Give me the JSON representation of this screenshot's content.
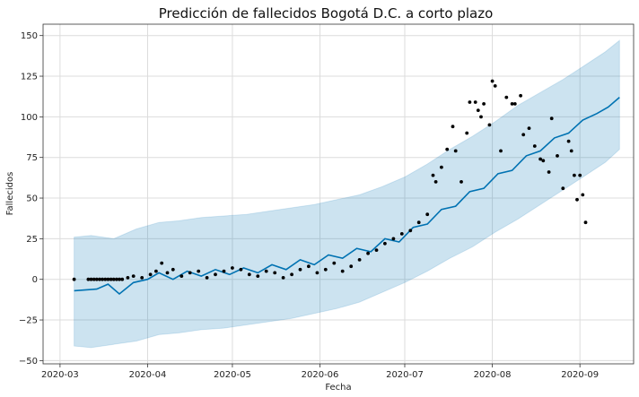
{
  "chart_data": {
    "type": "line",
    "title": "Predicción de fallecidos Bogotá D.C. a corto plazo",
    "xlabel": "Fecha",
    "ylabel": "Fallecidos",
    "x_ticks": [
      "2020-03",
      "2020-04",
      "2020-05",
      "2020-06",
      "2020-07",
      "2020-08",
      "2020-09"
    ],
    "y_ticks": [
      -50,
      -25,
      0,
      25,
      50,
      75,
      100,
      125,
      150
    ],
    "xlim": [
      "2020-02-24",
      "2020-09-20"
    ],
    "ylim": [
      -52,
      157
    ],
    "grid": true,
    "colors": {
      "forecast": "#0072B2",
      "uncertainty": "#0072B2",
      "observed": "#000000"
    },
    "series": [
      {
        "kind": "forecast",
        "points": [
          [
            "2020-03-06",
            -7
          ],
          [
            "2020-03-14",
            -6
          ],
          [
            "2020-03-18",
            -3
          ],
          [
            "2020-03-22",
            -9
          ],
          [
            "2020-03-27",
            -2
          ],
          [
            "2020-04-01",
            0
          ],
          [
            "2020-04-05",
            4
          ],
          [
            "2020-04-10",
            0
          ],
          [
            "2020-04-15",
            5
          ],
          [
            "2020-04-20",
            2
          ],
          [
            "2020-04-25",
            6
          ],
          [
            "2020-04-30",
            3
          ],
          [
            "2020-05-05",
            7
          ],
          [
            "2020-05-10",
            4
          ],
          [
            "2020-05-15",
            9
          ],
          [
            "2020-05-20",
            6
          ],
          [
            "2020-05-25",
            12
          ],
          [
            "2020-05-30",
            9
          ],
          [
            "2020-06-04",
            15
          ],
          [
            "2020-06-09",
            13
          ],
          [
            "2020-06-14",
            19
          ],
          [
            "2020-06-19",
            17
          ],
          [
            "2020-06-24",
            25
          ],
          [
            "2020-06-29",
            23
          ],
          [
            "2020-07-04",
            32
          ],
          [
            "2020-07-09",
            34
          ],
          [
            "2020-07-14",
            43
          ],
          [
            "2020-07-19",
            45
          ],
          [
            "2020-07-24",
            54
          ],
          [
            "2020-07-29",
            56
          ],
          [
            "2020-08-03",
            65
          ],
          [
            "2020-08-08",
            67
          ],
          [
            "2020-08-13",
            76
          ],
          [
            "2020-08-18",
            79
          ],
          [
            "2020-08-23",
            87
          ],
          [
            "2020-08-28",
            90
          ],
          [
            "2020-09-02",
            98
          ],
          [
            "2020-09-07",
            102
          ],
          [
            "2020-09-11",
            106
          ],
          [
            "2020-09-15",
            112
          ]
        ]
      },
      {
        "kind": "uncertainty_upper",
        "points": [
          [
            "2020-03-06",
            26
          ],
          [
            "2020-03-12",
            27
          ],
          [
            "2020-03-20",
            25
          ],
          [
            "2020-03-28",
            31
          ],
          [
            "2020-04-05",
            35
          ],
          [
            "2020-04-12",
            36
          ],
          [
            "2020-04-20",
            38
          ],
          [
            "2020-04-28",
            39
          ],
          [
            "2020-05-06",
            40
          ],
          [
            "2020-05-14",
            42
          ],
          [
            "2020-05-22",
            44
          ],
          [
            "2020-05-30",
            46
          ],
          [
            "2020-06-07",
            49
          ],
          [
            "2020-06-15",
            52
          ],
          [
            "2020-06-23",
            57
          ],
          [
            "2020-07-01",
            63
          ],
          [
            "2020-07-09",
            71
          ],
          [
            "2020-07-17",
            80
          ],
          [
            "2020-07-25",
            88
          ],
          [
            "2020-08-02",
            97
          ],
          [
            "2020-08-10",
            107
          ],
          [
            "2020-08-18",
            115
          ],
          [
            "2020-08-26",
            123
          ],
          [
            "2020-09-03",
            132
          ],
          [
            "2020-09-10",
            140
          ],
          [
            "2020-09-15",
            147
          ]
        ]
      },
      {
        "kind": "uncertainty_lower",
        "points": [
          [
            "2020-03-06",
            -41
          ],
          [
            "2020-03-12",
            -42
          ],
          [
            "2020-03-20",
            -40
          ],
          [
            "2020-03-28",
            -38
          ],
          [
            "2020-04-05",
            -34
          ],
          [
            "2020-04-12",
            -33
          ],
          [
            "2020-04-20",
            -31
          ],
          [
            "2020-04-28",
            -30
          ],
          [
            "2020-05-06",
            -28
          ],
          [
            "2020-05-14",
            -26
          ],
          [
            "2020-05-22",
            -24
          ],
          [
            "2020-05-30",
            -21
          ],
          [
            "2020-06-07",
            -18
          ],
          [
            "2020-06-15",
            -14
          ],
          [
            "2020-06-23",
            -8
          ],
          [
            "2020-07-01",
            -2
          ],
          [
            "2020-07-09",
            5
          ],
          [
            "2020-07-17",
            13
          ],
          [
            "2020-07-25",
            20
          ],
          [
            "2020-08-02",
            29
          ],
          [
            "2020-08-10",
            37
          ],
          [
            "2020-08-18",
            46
          ],
          [
            "2020-08-26",
            55
          ],
          [
            "2020-09-03",
            64
          ],
          [
            "2020-09-10",
            72
          ],
          [
            "2020-09-15",
            80
          ]
        ]
      },
      {
        "kind": "observed",
        "points": [
          [
            "2020-03-06",
            0
          ],
          [
            "2020-03-11",
            0
          ],
          [
            "2020-03-12",
            0
          ],
          [
            "2020-03-13",
            0
          ],
          [
            "2020-03-14",
            0
          ],
          [
            "2020-03-15",
            0
          ],
          [
            "2020-03-16",
            0
          ],
          [
            "2020-03-17",
            0
          ],
          [
            "2020-03-18",
            0
          ],
          [
            "2020-03-19",
            0
          ],
          [
            "2020-03-20",
            0
          ],
          [
            "2020-03-21",
            0
          ],
          [
            "2020-03-22",
            0
          ],
          [
            "2020-03-23",
            0
          ],
          [
            "2020-03-25",
            1
          ],
          [
            "2020-03-27",
            2
          ],
          [
            "2020-03-30",
            1
          ],
          [
            "2020-04-02",
            3
          ],
          [
            "2020-04-04",
            5
          ],
          [
            "2020-04-06",
            10
          ],
          [
            "2020-04-08",
            4
          ],
          [
            "2020-04-10",
            6
          ],
          [
            "2020-04-13",
            2
          ],
          [
            "2020-04-16",
            4
          ],
          [
            "2020-04-19",
            5
          ],
          [
            "2020-04-22",
            1
          ],
          [
            "2020-04-25",
            3
          ],
          [
            "2020-04-28",
            5
          ],
          [
            "2020-05-01",
            7
          ],
          [
            "2020-05-04",
            6
          ],
          [
            "2020-05-07",
            3
          ],
          [
            "2020-05-10",
            2
          ],
          [
            "2020-05-13",
            5
          ],
          [
            "2020-05-16",
            4
          ],
          [
            "2020-05-19",
            1
          ],
          [
            "2020-05-22",
            3
          ],
          [
            "2020-05-25",
            6
          ],
          [
            "2020-05-28",
            8
          ],
          [
            "2020-05-31",
            4
          ],
          [
            "2020-06-03",
            6
          ],
          [
            "2020-06-06",
            10
          ],
          [
            "2020-06-09",
            5
          ],
          [
            "2020-06-12",
            8
          ],
          [
            "2020-06-15",
            12
          ],
          [
            "2020-06-18",
            16
          ],
          [
            "2020-06-21",
            18
          ],
          [
            "2020-06-24",
            22
          ],
          [
            "2020-06-27",
            25
          ],
          [
            "2020-06-30",
            28
          ],
          [
            "2020-07-03",
            30
          ],
          [
            "2020-07-06",
            35
          ],
          [
            "2020-07-09",
            40
          ],
          [
            "2020-07-11",
            64
          ],
          [
            "2020-07-12",
            60
          ],
          [
            "2020-07-14",
            69
          ],
          [
            "2020-07-16",
            80
          ],
          [
            "2020-07-18",
            94
          ],
          [
            "2020-07-19",
            79
          ],
          [
            "2020-07-21",
            60
          ],
          [
            "2020-07-23",
            90
          ],
          [
            "2020-07-24",
            109
          ],
          [
            "2020-07-26",
            109
          ],
          [
            "2020-07-27",
            104
          ],
          [
            "2020-07-28",
            100
          ],
          [
            "2020-07-29",
            108
          ],
          [
            "2020-07-31",
            95
          ],
          [
            "2020-08-01",
            122
          ],
          [
            "2020-08-02",
            119
          ],
          [
            "2020-08-04",
            79
          ],
          [
            "2020-08-06",
            112
          ],
          [
            "2020-08-08",
            108
          ],
          [
            "2020-08-09",
            108
          ],
          [
            "2020-08-11",
            113
          ],
          [
            "2020-08-12",
            89
          ],
          [
            "2020-08-14",
            93
          ],
          [
            "2020-08-16",
            82
          ],
          [
            "2020-08-18",
            74
          ],
          [
            "2020-08-19",
            73
          ],
          [
            "2020-08-21",
            66
          ],
          [
            "2020-08-22",
            99
          ],
          [
            "2020-08-24",
            76
          ],
          [
            "2020-08-26",
            56
          ],
          [
            "2020-08-28",
            85
          ],
          [
            "2020-08-29",
            79
          ],
          [
            "2020-08-30",
            64
          ],
          [
            "2020-08-31",
            49
          ],
          [
            "2020-09-01",
            64
          ],
          [
            "2020-09-02",
            52
          ],
          [
            "2020-09-03",
            35
          ]
        ]
      }
    ]
  }
}
